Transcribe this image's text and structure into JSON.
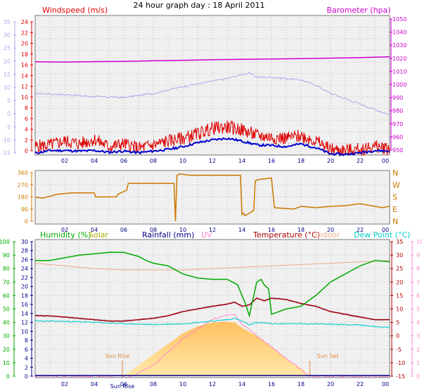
{
  "title": "24 hour graph day : 18 April 2011",
  "colors": {
    "wind": "#dd0000",
    "gust": "#0000cc",
    "temp_axis": "#aaaaee",
    "barometer": "#cc00cc",
    "direction": "#cc7700",
    "humidity": "#00aa00",
    "solar": "#aaaa00",
    "rainfall": "#000088",
    "uv": "#ff88cc",
    "temperature": "#aa0000",
    "indoor": "#eeaa88",
    "dewpoint": "#00cccc"
  },
  "x_labels": [
    "02",
    "04",
    "06",
    "08",
    "10",
    "12",
    "14",
    "16",
    "18",
    "20",
    "22",
    "00"
  ],
  "sunrise_label": "Sun Rise",
  "sunset_label": "Sun Set",
  "chart_data": [
    {
      "type": "line",
      "panel": "wind_barometer",
      "left_label": "Windspeed (m/s)",
      "right_label": "Barometer (hpa)",
      "left_outer_ticks": [
        "35",
        "30",
        "25",
        "20",
        "15",
        "10",
        "5",
        "0",
        "-5",
        "-10",
        "-15"
      ],
      "left_ticks": [
        "24",
        "22",
        "20",
        "18",
        "16",
        "14",
        "12",
        "10",
        "8",
        "6",
        "4",
        "2",
        "0"
      ],
      "right_ticks": [
        "1050",
        "1040",
        "1030",
        "1020",
        "1010",
        "1000",
        "990",
        "980",
        "970",
        "960",
        "950"
      ],
      "ylim_wind": [
        0,
        25
      ],
      "ylim_baro": [
        948,
        1052
      ],
      "ylim_temp": [
        -16,
        36
      ],
      "series": [
        {
          "name": "Barometer (hpa)",
          "x": [
            0,
            2,
            4,
            6,
            8,
            10,
            12,
            14,
            16,
            18,
            20,
            22,
            24
          ],
          "values": [
            1017.5,
            1017.3,
            1017.6,
            1017.8,
            1018.2,
            1018.6,
            1019.0,
            1019.3,
            1019.6,
            1019.8,
            1020.2,
            1020.6,
            1021.2
          ]
        },
        {
          "x": [
            0,
            2,
            4,
            6,
            8,
            10,
            12,
            13,
            14,
            14.5,
            15,
            16,
            18,
            19,
            20,
            22,
            24
          ],
          "values": [
            7,
            6.5,
            5.8,
            5.4,
            7,
            9.5,
            11.5,
            12.5,
            14,
            14.5,
            13,
            13,
            12,
            10,
            7,
            3,
            -1
          ]
        },
        {
          "x": [
            0,
            1,
            2,
            3,
            4,
            5,
            6,
            7,
            8,
            9,
            10,
            11,
            12,
            13,
            14,
            15,
            16,
            17,
            18,
            19,
            20,
            21,
            22,
            23,
            24
          ],
          "values": [
            1.5,
            1.8,
            2.5,
            2.0,
            2.8,
            1.5,
            2.0,
            1.2,
            1.8,
            2.5,
            3.0,
            3.8,
            4.8,
            5.0,
            4.5,
            3.5,
            3.2,
            3.0,
            3.5,
            2.5,
            1.0,
            0.8,
            1.0,
            1.5,
            1.2
          ]
        },
        {
          "x": [
            0,
            1,
            2,
            3,
            4,
            5,
            6,
            7,
            8,
            9,
            10,
            11,
            12,
            13,
            14,
            15,
            16,
            17,
            18,
            19,
            20,
            21,
            22,
            23,
            24
          ],
          "values": [
            0.3,
            0.8,
            0.8,
            0.7,
            0.8,
            0.5,
            0.7,
            0.4,
            0.7,
            1.0,
            1.5,
            2.2,
            2.7,
            3.0,
            2.5,
            1.8,
            1.7,
            1.5,
            2.0,
            1.3,
            0.2,
            0.1,
            0.4,
            0.8,
            0.7
          ]
        }
      ]
    },
    {
      "type": "line",
      "panel": "wind_direction",
      "left_ticks": [
        "360",
        "270",
        "180",
        "90",
        "0"
      ],
      "right_ticks": [
        "N",
        "W",
        "S",
        "E",
        "N"
      ],
      "ylim": [
        0,
        360
      ],
      "series": [
        {
          "x": [
            0,
            0.5,
            1.5,
            2.5,
            4.0,
            4.1,
            5.5,
            5.6,
            6.2,
            6.3,
            7.8,
            8.5,
            9.4,
            9.5,
            9.6,
            9.7,
            9.8,
            10.5,
            13.9,
            14.0,
            14.1,
            14.2,
            14.8,
            14.9,
            15.2,
            16.0,
            16.2,
            17.5,
            18.0,
            19.0,
            20.0,
            21.0,
            22.0,
            23.5,
            24.0
          ],
          "values": [
            180,
            170,
            200,
            210,
            210,
            180,
            180,
            200,
            230,
            280,
            280,
            280,
            280,
            0,
            340,
            345,
            350,
            340,
            340,
            50,
            60,
            40,
            80,
            300,
            310,
            320,
            100,
            90,
            110,
            100,
            110,
            115,
            130,
            100,
            110
          ]
        }
      ]
    },
    {
      "type": "line",
      "panel": "humidity_temperature",
      "left_labels": [
        "Humidity (%)",
        "Solar",
        "Rainfall (mm)",
        "UV"
      ],
      "right_labels": [
        "Temperature (°C)",
        "Indoor",
        "Dew Point (°C)"
      ],
      "humidity_ticks": [
        "100",
        "90",
        "80",
        "70",
        "60",
        "50",
        "40",
        "30",
        "20",
        "10",
        "0"
      ],
      "rain_ticks": [
        "30",
        "28",
        "26",
        "24",
        "22",
        "20",
        "18",
        "16",
        "14",
        "12",
        "10",
        "8",
        "6",
        "4",
        "2",
        "0"
      ],
      "temp_ticks": [
        "35",
        "30",
        "25",
        "20",
        "15",
        "10",
        "5",
        "0",
        "-5",
        "-10",
        "-15"
      ],
      "uv_ticks": [
        "10",
        "9",
        "8",
        "7",
        "6",
        "5",
        "4",
        "3",
        "2",
        "1",
        "0"
      ],
      "ylim_humidity": [
        0,
        100
      ],
      "ylim_temp": [
        -15,
        35
      ],
      "ylim_uv": [
        0,
        10
      ],
      "series": [
        {
          "name": "Humidity (%)",
          "x": [
            0,
            1,
            2,
            3,
            4,
            5,
            6,
            7,
            7.5,
            8,
            9,
            10,
            11,
            12,
            13,
            13.7,
            14,
            14.2,
            14.5,
            15,
            15.3,
            15.5,
            15.8,
            16,
            16.5,
            17,
            18,
            19,
            20,
            21,
            22,
            23,
            24
          ],
          "values": [
            86,
            86,
            88,
            90,
            91,
            92,
            92,
            89,
            86,
            84,
            82,
            76,
            73,
            72,
            72,
            68,
            60,
            55,
            45,
            70,
            72,
            68,
            65,
            46,
            48,
            50,
            52,
            60,
            70,
            76,
            82,
            86,
            85
          ]
        },
        {
          "name": "Solar",
          "x": [
            5.9,
            7,
            8,
            9,
            10,
            11,
            12,
            12.7,
            13.5,
            14,
            15,
            16,
            17,
            18,
            18.6
          ],
          "values": [
            0,
            8,
            16,
            24,
            32,
            37,
            40,
            40.5,
            40,
            36,
            30,
            22,
            13,
            6,
            0
          ]
        },
        {
          "name": "UV",
          "x": [
            6.5,
            8,
            9,
            10,
            11,
            12,
            13,
            13.5,
            14,
            14.5,
            15,
            16,
            17,
            18,
            18.5
          ],
          "values": [
            0,
            0.8,
            1.8,
            2.8,
            3.5,
            4.2,
            4.6,
            4.6,
            3.9,
            3.5,
            3.0,
            2.2,
            1.3,
            0.5,
            0
          ]
        },
        {
          "name": "Temperature (°C)",
          "x": [
            0,
            1,
            2,
            3,
            4,
            5,
            6,
            7,
            8,
            9,
            10,
            11,
            12,
            13,
            13.5,
            14,
            14.5,
            15,
            15.5,
            16,
            17,
            18,
            19,
            20,
            21,
            22,
            23,
            24
          ],
          "values": [
            7.5,
            7.4,
            7,
            6.5,
            6,
            5.5,
            5.5,
            6,
            6.5,
            7.5,
            9,
            10,
            11,
            11.8,
            12.5,
            11,
            11.5,
            14,
            13,
            14,
            13.5,
            12,
            11,
            9,
            8,
            7,
            6,
            6
          ]
        },
        {
          "name": "Indoor",
          "x": [
            0,
            2,
            4,
            6,
            8,
            10,
            12,
            14,
            16,
            18,
            20,
            22,
            24
          ],
          "values": [
            27,
            26,
            25,
            24.5,
            24.5,
            24.5,
            25,
            25.5,
            26,
            26.5,
            27,
            27.5,
            28
          ]
        },
        {
          "name": "Dew Point (°C)",
          "x": [
            0,
            2,
            4,
            6,
            8,
            10,
            11,
            12,
            13,
            13.5,
            14,
            14.5,
            15,
            16,
            17,
            18,
            19,
            20,
            21,
            22,
            23,
            24
          ],
          "values": [
            5.5,
            5.4,
            5,
            4.5,
            4.2,
            4.5,
            5,
            5.5,
            6,
            6.5,
            5.5,
            4,
            5,
            4.5,
            4.5,
            4.5,
            4.5,
            4.3,
            4.2,
            4.0,
            3.5,
            3
          ]
        }
      ]
    }
  ]
}
